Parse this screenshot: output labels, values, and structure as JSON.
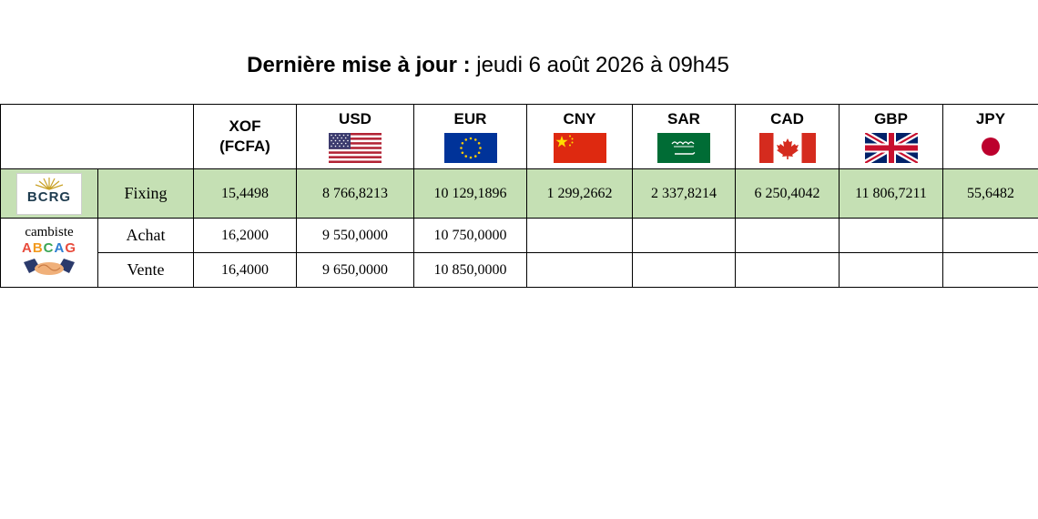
{
  "title": {
    "bold": "Dernière mise à jour :",
    "date": "jeudi 6 août 2026 à 09h45"
  },
  "currencies": [
    {
      "code": "XOF",
      "sub": "(FCFA)",
      "flag": "none"
    },
    {
      "code": "USD",
      "flag": "us-flag-icon"
    },
    {
      "code": "EUR",
      "flag": "eu-flag-icon"
    },
    {
      "code": "CNY",
      "flag": "china-flag-icon"
    },
    {
      "code": "SAR",
      "flag": "saudi-flag-icon"
    },
    {
      "code": "CAD",
      "flag": "canada-flag-icon"
    },
    {
      "code": "GBP",
      "flag": "uk-flag-icon"
    },
    {
      "code": "JPY",
      "flag": "japan-flag-icon"
    }
  ],
  "logos": {
    "bcrg": "BCRG",
    "cambiste": "cambiste",
    "abcag": "ABCAG"
  },
  "rows": {
    "fixing": {
      "label": "Fixing",
      "values": [
        "15,4498",
        "8 766,8213",
        "10 129,1896",
        "1 299,2662",
        "2 337,8214",
        "6 250,4042",
        "11 806,7211",
        "55,6482"
      ]
    },
    "achat": {
      "label": "Achat",
      "values": [
        "16,2000",
        "9 550,0000",
        "10 750,0000",
        "",
        "",
        "",
        "",
        ""
      ]
    },
    "vente": {
      "label": "Vente",
      "values": [
        "16,4000",
        "9 650,0000",
        "10 850,0000",
        "",
        "",
        "",
        "",
        ""
      ]
    }
  },
  "colors": {
    "fixing_row_bg": "#c5e0b4",
    "border": "#000000"
  }
}
